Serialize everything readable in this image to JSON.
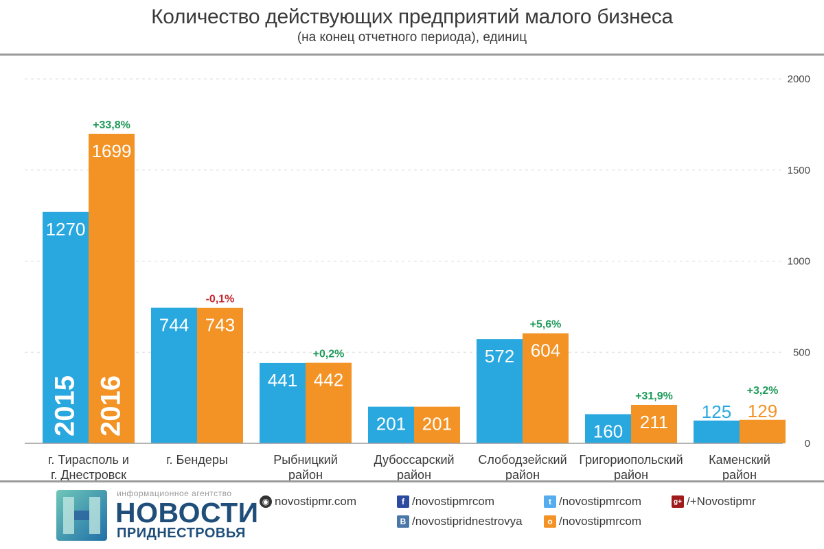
{
  "chart_data": {
    "type": "bar",
    "title": "Количество действующих предприятий малого бизнеса",
    "subtitle": "(на конец отчетного периода), единиц",
    "categories": [
      [
        "г. Тирасполь и",
        "г. Днестровск"
      ],
      [
        "г. Бендеры"
      ],
      [
        "Рыбницкий",
        "район"
      ],
      [
        "Дубоссарский",
        "район"
      ],
      [
        "Слободзейский",
        "район"
      ],
      [
        "Григориопольский",
        "район"
      ],
      [
        "Каменский",
        "район"
      ]
    ],
    "series": [
      {
        "name": "2015",
        "color": "#29a8e0",
        "values": [
          1270,
          744,
          441,
          201,
          572,
          160,
          125
        ]
      },
      {
        "name": "2016",
        "color": "#f39325",
        "values": [
          1699,
          743,
          442,
          201,
          604,
          211,
          129
        ]
      }
    ],
    "changes": [
      "+33,8%",
      "-0,1%",
      "+0,2%",
      "",
      "+5,6%",
      "+31,9%",
      "+3,2%"
    ],
    "change_colors": {
      "positive": "#1f9a5a",
      "negative": "#c1272d"
    },
    "yticks": [
      "0",
      "500",
      "1000",
      "1500",
      "2000"
    ],
    "ylim": [
      0,
      2000
    ],
    "grid": true,
    "legend_placement": "inside first bar group (vertical year labels)"
  },
  "footer": {
    "agency_small": "информационное агентство",
    "agency_big": "НОВОСТИ",
    "agency_sub": "ПРИДНЕСТРОВЬЯ",
    "links": {
      "site": "novostipmr.com",
      "facebook": "/novostipmrcom",
      "vk": "/novostipridnestrovya",
      "twitter": "/novostipmrcom",
      "odnoklassniki": "/novostipmrcom",
      "googleplus": "/+Novostipmr"
    },
    "icons": {
      "site": "globe-icon",
      "facebook": "facebook-icon",
      "vk": "vk-icon",
      "twitter": "twitter-icon",
      "odnoklassniki": "odnoklassniki-icon",
      "googleplus": "googleplus-icon"
    }
  }
}
